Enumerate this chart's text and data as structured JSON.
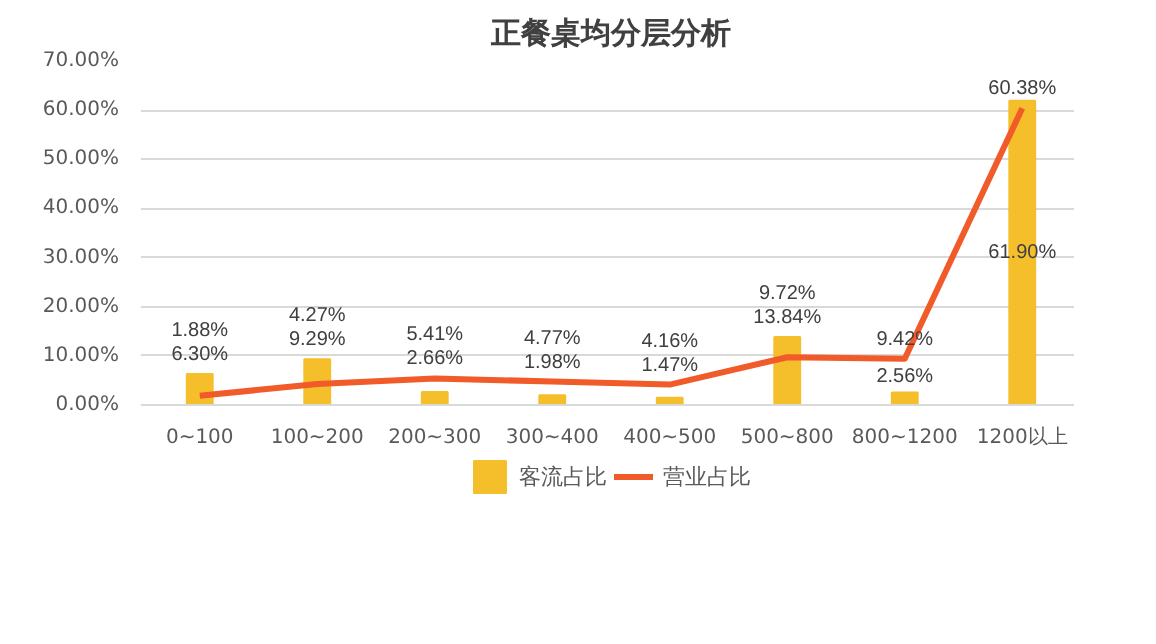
{
  "chart_data": {
    "type": "bar",
    "title": "正餐桌均分层分析",
    "categories": [
      "0~100",
      "100~200",
      "200~300",
      "300~400",
      "400~500",
      "500~800",
      "800~1200",
      "1200以上"
    ],
    "series": [
      {
        "name": "客流占比",
        "color": "#f4bf2a",
        "values": [
          6.3,
          9.29,
          2.66,
          1.98,
          1.47,
          13.84,
          2.56,
          61.9
        ],
        "value_labels": [
          "6.30%",
          "9.29%",
          "2.66%",
          "1.98%",
          "1.47%",
          "13.84%",
          "2.56%",
          "61.90%"
        ]
      },
      {
        "name": "营业占比",
        "type": "line",
        "color": "#f15a29",
        "values": [
          1.88,
          4.27,
          5.41,
          4.77,
          4.16,
          9.72,
          9.42,
          60.38
        ],
        "value_labels": [
          "1.88%",
          "4.27%",
          "5.41%",
          "4.77%",
          "4.16%",
          "9.72%",
          "9.42%",
          "60.38%"
        ]
      }
    ],
    "ylim": [
      0,
      70
    ],
    "yticks": [
      {
        "value": 0,
        "label": "0.00%"
      },
      {
        "value": 10,
        "label": "10.00%"
      },
      {
        "value": 20,
        "label": "20.00%"
      },
      {
        "value": 30,
        "label": "30.00%"
      },
      {
        "value": 40,
        "label": "40.00%"
      },
      {
        "value": 50,
        "label": "50.00%"
      },
      {
        "value": 60,
        "label": "60.00%"
      },
      {
        "value": 70,
        "label": "70.00%"
      }
    ],
    "grid": "y",
    "legend": "bottom"
  }
}
